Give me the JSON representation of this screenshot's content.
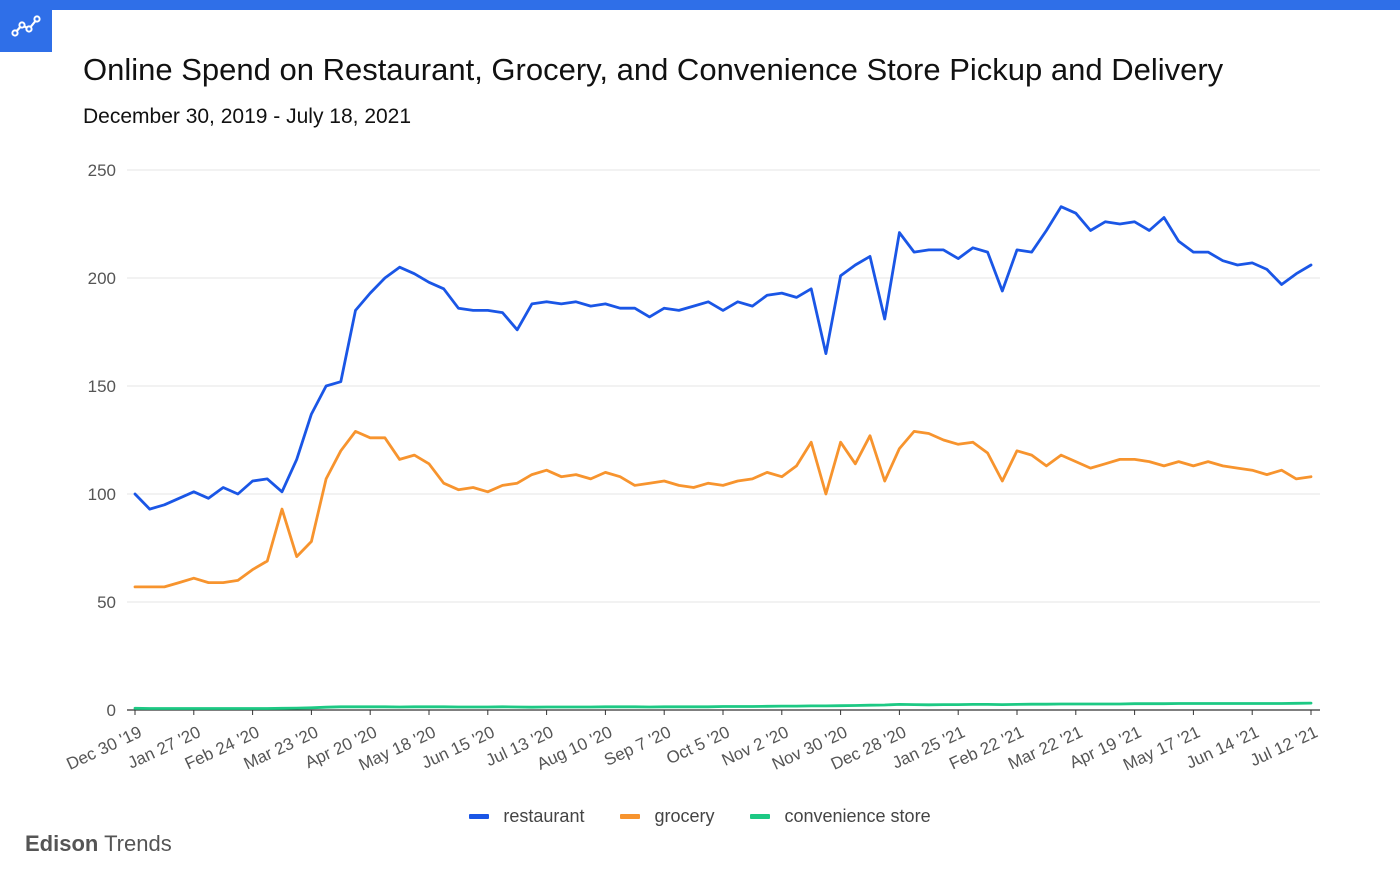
{
  "header": {
    "title": "Online Spend on Restaurant, Grocery, and Convenience Store Pickup and Delivery",
    "subtitle": "December 30, 2019 - July 18, 2021",
    "logo_icon": "trend-line-icon",
    "bar_color": "#2f6fe8"
  },
  "brand": {
    "name_bold": "Edison",
    "name_light": "Trends"
  },
  "chart_data": {
    "type": "line",
    "title": "Online Spend on Restaurant, Grocery, and Convenience Store Pickup and Delivery",
    "subtitle": "December 30, 2019 - July 18, 2021",
    "xlabel": "",
    "ylabel": "",
    "ylim": [
      0,
      250
    ],
    "y_ticks": [
      0,
      50,
      100,
      150,
      200,
      250
    ],
    "grid": true,
    "legend_position": "bottom",
    "x_tick_labels": [
      "Dec 30 '19",
      "Jan 27 '20",
      "Feb 24 '20",
      "Mar 23 '20",
      "Apr 20 '20",
      "May 18 '20",
      "Jun 15 '20",
      "Jul 13 '20",
      "Aug 10 '20",
      "Sep 7 '20",
      "Oct 5 '20",
      "Nov 2 '20",
      "Nov 30 '20",
      "Dec 28 '20",
      "Jan 25 '21",
      "Feb 22 '21",
      "Mar 22 '21",
      "Apr 19 '21",
      "May 17 '21",
      "Jun 14 '21",
      "Jul 12 '21"
    ],
    "x_start": "2019-12-30",
    "x_step_days": 7,
    "series": [
      {
        "name": "restaurant",
        "color": "#1a56e6",
        "values": [
          100,
          93,
          95,
          98,
          101,
          98,
          103,
          100,
          106,
          107,
          101,
          116,
          137,
          150,
          152,
          185,
          193,
          200,
          205,
          202,
          198,
          195,
          186,
          185,
          185,
          184,
          176,
          188,
          189,
          188,
          189,
          187,
          188,
          186,
          186,
          182,
          186,
          185,
          187,
          189,
          185,
          189,
          187,
          192,
          193,
          191,
          195,
          165,
          201,
          206,
          210,
          181,
          221,
          212,
          213,
          213,
          209,
          214,
          212,
          194,
          213,
          212,
          222,
          233,
          230,
          222,
          226,
          225,
          226,
          222,
          228,
          217,
          212,
          212,
          208,
          206,
          207,
          204,
          197,
          202,
          206
        ]
      },
      {
        "name": "grocery",
        "color": "#f7942e",
        "values": [
          57,
          57,
          57,
          59,
          61,
          59,
          59,
          60,
          65,
          69,
          93,
          71,
          78,
          107,
          120,
          129,
          126,
          126,
          116,
          118,
          114,
          105,
          102,
          103,
          101,
          104,
          105,
          109,
          111,
          108,
          109,
          107,
          110,
          108,
          104,
          105,
          106,
          104,
          103,
          105,
          104,
          106,
          107,
          110,
          108,
          113,
          124,
          100,
          124,
          114,
          127,
          106,
          121,
          129,
          128,
          125,
          123,
          124,
          119,
          106,
          120,
          118,
          113,
          118,
          115,
          112,
          114,
          116,
          116,
          115,
          113,
          115,
          113,
          115,
          113,
          112,
          111,
          109,
          111,
          107,
          108
        ]
      },
      {
        "name": "convenience store",
        "color": "#1dc984",
        "values": [
          0.8,
          0.7,
          0.7,
          0.7,
          0.7,
          0.7,
          0.7,
          0.7,
          0.7,
          0.7,
          0.8,
          0.9,
          1.0,
          1.3,
          1.5,
          1.5,
          1.5,
          1.5,
          1.4,
          1.5,
          1.5,
          1.5,
          1.4,
          1.4,
          1.4,
          1.5,
          1.4,
          1.3,
          1.4,
          1.4,
          1.4,
          1.4,
          1.5,
          1.5,
          1.5,
          1.4,
          1.5,
          1.5,
          1.5,
          1.5,
          1.6,
          1.6,
          1.6,
          1.7,
          1.8,
          1.8,
          1.9,
          1.9,
          2.0,
          2.1,
          2.2,
          2.3,
          2.6,
          2.5,
          2.4,
          2.5,
          2.5,
          2.6,
          2.6,
          2.5,
          2.6,
          2.7,
          2.7,
          2.8,
          2.8,
          2.8,
          2.8,
          2.8,
          2.9,
          2.9,
          2.9,
          3.0,
          3.0,
          3.0,
          3.0,
          3.0,
          3.0,
          3.0,
          3.0,
          3.1,
          3.2
        ]
      }
    ]
  }
}
